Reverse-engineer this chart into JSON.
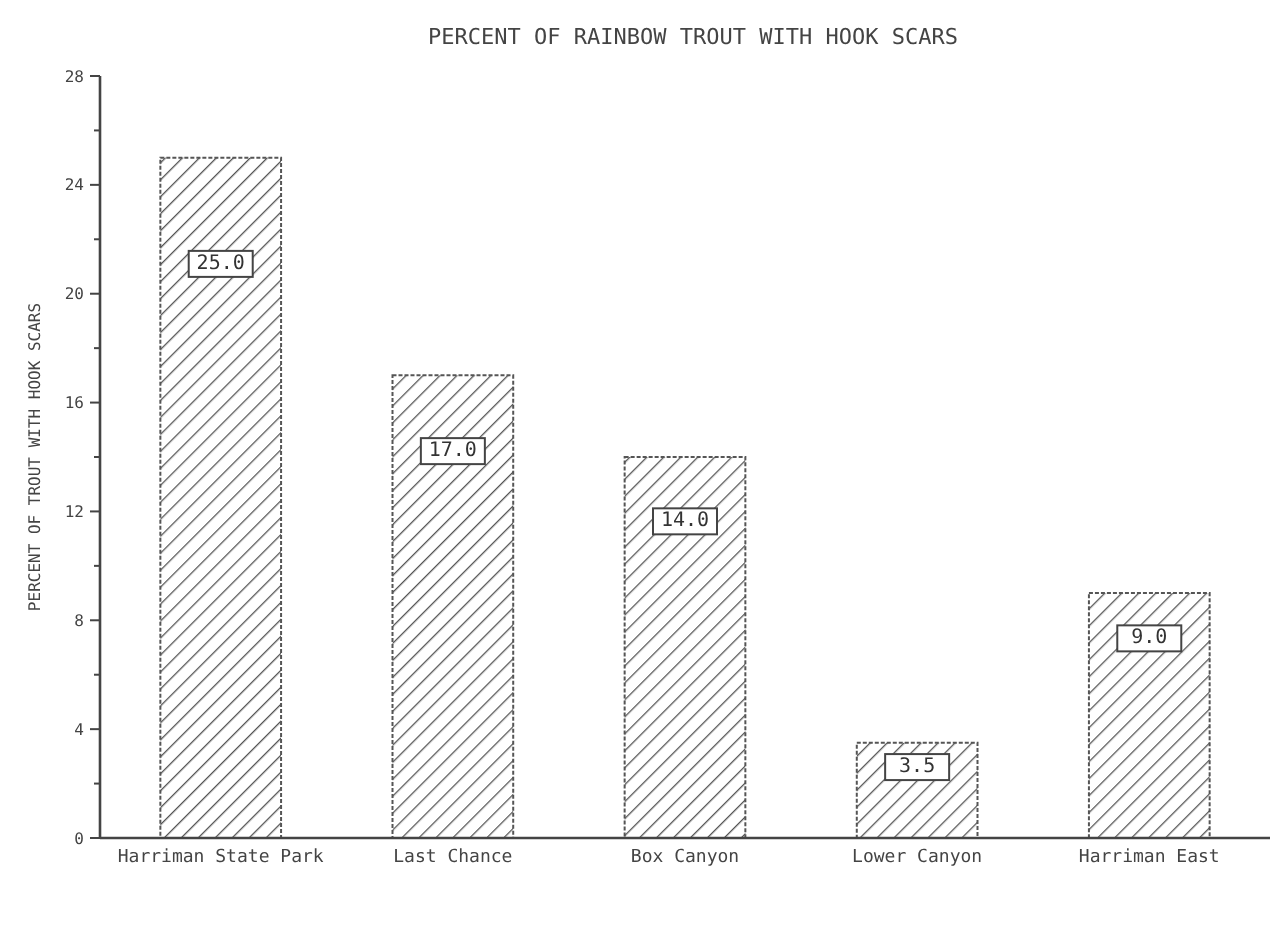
{
  "chart_data": {
    "type": "bar",
    "title": "PERCENT OF RAINBOW TROUT WITH HOOK SCARS",
    "ylabel": "PERCENT OF TROUT WITH HOOK SCARS",
    "categories": [
      "Harriman State Park",
      "Last Chance",
      "Box Canyon",
      "Lower Canyon",
      "Harriman East"
    ],
    "values": [
      25.0,
      17.0,
      14.0,
      3.5,
      9.0
    ],
    "value_labels": [
      "25.0",
      "17.0",
      "14.0",
      "3.5",
      "9.0"
    ],
    "color": "#555555",
    "ylim": [
      0,
      28
    ],
    "yticks": [
      0,
      4,
      8,
      12,
      16,
      20,
      24,
      28
    ],
    "grid": false
  }
}
